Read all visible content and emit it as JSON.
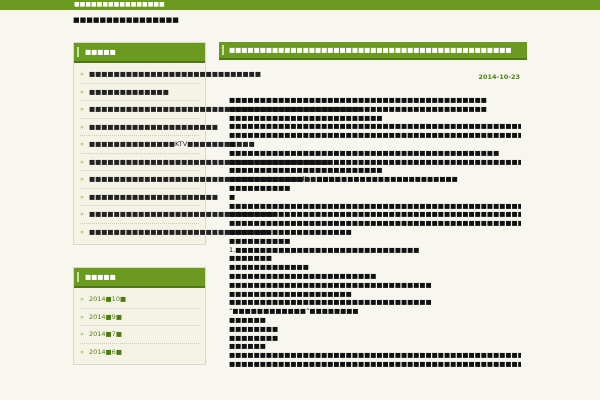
{
  "topbar": {
    "text": "■■■■■■■■■■■■■■■■"
  },
  "site": {
    "title": "■■■■■■■■■■■■■■■■"
  },
  "sidebar": {
    "recent": {
      "title": "■■■■■",
      "items": [
        "■■■■■■■■■■■■■■■■■■■■■■■■■■■■",
        "■■■■■■■■■■■■■",
        "■■■■■■■■■■■■■■■■■■■■■■■■■■■■■■■■■■■■■■■■■■■■",
        "■■■■■■■■■■■■■■■■■■■■■",
        "■■■■■■■■■■■■■■KTV■■■■■■■■■■■",
        "■■■■■■■■■■■■■■■■■■■■■■■■■■■■■■■■■■■■■■■",
        "■■■■■■■■■■■■■■■■■■■■■■■■■■■■■■■■■■■■■■■■■",
        "■■■■■■■■■■■■■■■■■■■■■",
        "■■■■■■■■■■■■■■■■■■■■■■■■■■■■■■",
        "■■■■■■■■■■■■■■■■■■■■■■■■■■■■■"
      ]
    },
    "archives": {
      "title": "■■■■■",
      "items": [
        "2014■10■",
        "2014■9■",
        "2014■7■",
        "2014■6■"
      ]
    }
  },
  "post": {
    "title": "■■■■■■■■■■■■■■■■■■■■■■■■■■■■■■■■■■■■■■■■■■■■■■",
    "date": "2014-10-23",
    "paragraphs": [
      "■■■■■■■■■■■■■■■■■■■■■■■■■■■■■■■■■■■■■■■■■■",
      "■■■■■■■■■■■■■■■■■■■■■■■■■■■■■■■■■■■■■■■■■■",
      "■■■■■■■■■■■■■■■■■■■■■■■■■",
      "■■■■■■■■■■■■■■■■■■■■■■■■■■■■■■■■■■■■■■■■■■■■■■■■■■■■■■■■■■■■■■■■■■■■■■■■■■■■■■■■■■■■■■■",
      "■■■■■■■■■■■■■■■■■■■■■■■■■■■■■■■■■■■■■■■■■■■■■■■■■■■■■■■■■■■■■■■■■■■■■■■■■■■■■■■■■■■■■■■",
      "■",
      "■■■■■■■■■■■■■■■■■■■■■■■■■■■■■■■■■■■■■■■■■■■■",
      "■■■■■■■■■■■■■■■■■■■■■■■■■■■■■■■■■■■■■■■■■■■■■■■■",
      "■■■■■■■■■■■■■■■■■■■■■■■■■",
      "■■■■■■■■■■■■line ■■■■■■■■■■■■■■■■■■■■■■■",
      "■■■■■■■■■■",
      "■",
      "■■■■■■■■■■■■■■■■■■■■■■■■■■■■■■■■■■■■■■■■■■■■■■■■■■",
      "■■■■■■■■■■■■■■■■■■■■■■■■■■■■■■■■■■■■■■■■■■■■■■■■■■■■■■■■■■■■■■■■■■■■",
      "■■■■■■■■■■■■■■■■■■■■■■■■■■■■■■■■■■■■■■■■■■■■■■■■■■■■■■■■■■■■",
      "■■■■■■■■■■■■■■■■■■■■",
      "■■■■■■■■■■",
      "1.■■■■■■■■■■■■■■■■■■■■■■■■■■■■■■",
      "■■■■■■■",
      "■■■■■■■■■■■■■",
      "■■■■■■■■■■■■■■■■■■■■■■■■",
      "■■■■■■■■■■■■■■■■■■■■■■■■■■■■■■■■■",
      "■■■■■■■■■■■■■■■■■■■■",
      "■■■■■■■■■■■■■■■■■■■■■■■■■■■■■■■■■",
      "“■■■■■■■■■■■■”■■■■■■■■",
      "■■■■■■",
      "■■■■■■■■",
      "■■■■■■■■",
      "■■■■■■",
      "■■■■■■■■■■■■■■■■■■■■■■■■■■■■■■■■■■■■■■■■■■■■■■■■■■■■■",
      "■■■■■■■■■■■■■■■■■■■■■■■■■■■■■■■■■■■■■■■■■■■■■■■■■■"
    ]
  },
  "colors": {
    "accent": "#6a9a1f",
    "accent_dark": "#4f7814",
    "link": "#4d7d12",
    "background": "#f8f7ef"
  }
}
